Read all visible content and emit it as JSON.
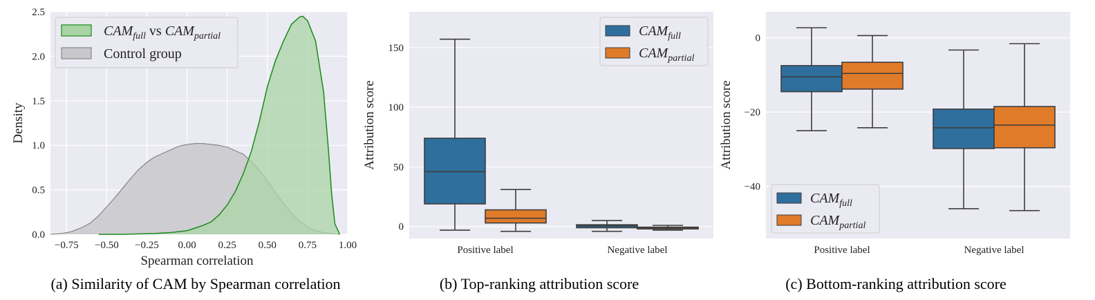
{
  "chart_data": [
    {
      "type": "area",
      "caption": "(a) Similarity of CAM by Spearman correlation",
      "xlabel": "Spearman correlation",
      "ylabel": "Density",
      "xlim": [
        -0.85,
        1.0
      ],
      "ylim": [
        0,
        2.5
      ],
      "x_ticks": [
        "−0.75",
        "−0.50",
        "−0.25",
        "0.00",
        "0.25",
        "0.50",
        "0.75",
        "1.00"
      ],
      "y_ticks": [
        "0.0",
        "0.5",
        "1.0",
        "1.5",
        "2.0",
        "2.5"
      ],
      "legend_position": "upper-left",
      "grid": true,
      "series": [
        {
          "name": "CAM_full vs CAM_partial",
          "legend_main_1": "CAM",
          "legend_sub_1": "full",
          "legend_mid": " vs ",
          "legend_main_2": "CAM",
          "legend_sub_2": "partial",
          "fill": "#a9d4a5",
          "stroke": "#1a8a1a",
          "x": [
            -0.55,
            -0.4,
            -0.2,
            -0.1,
            0.0,
            0.05,
            0.1,
            0.15,
            0.2,
            0.25,
            0.3,
            0.35,
            0.4,
            0.45,
            0.5,
            0.55,
            0.6,
            0.65,
            0.7,
            0.72,
            0.75,
            0.8,
            0.85,
            0.88,
            0.9,
            0.92,
            0.95
          ],
          "values": [
            0.0,
            0.0,
            0.01,
            0.02,
            0.04,
            0.07,
            0.1,
            0.14,
            0.22,
            0.33,
            0.48,
            0.68,
            0.93,
            1.27,
            1.66,
            1.95,
            2.17,
            2.36,
            2.44,
            2.45,
            2.4,
            2.17,
            1.6,
            0.95,
            0.45,
            0.12,
            0.0
          ]
        },
        {
          "name": "Control group",
          "fill": "#c9c8cd",
          "stroke": "#777777",
          "x": [
            -0.85,
            -0.78,
            -0.72,
            -0.65,
            -0.6,
            -0.55,
            -0.5,
            -0.45,
            -0.4,
            -0.35,
            -0.3,
            -0.25,
            -0.2,
            -0.15,
            -0.1,
            -0.05,
            0.0,
            0.05,
            0.1,
            0.15,
            0.2,
            0.25,
            0.3,
            0.35,
            0.4,
            0.45,
            0.5,
            0.55,
            0.6,
            0.65,
            0.7,
            0.75,
            0.8,
            0.85,
            0.9,
            0.95
          ],
          "values": [
            0.0,
            0.01,
            0.03,
            0.08,
            0.13,
            0.21,
            0.31,
            0.41,
            0.52,
            0.63,
            0.73,
            0.81,
            0.87,
            0.91,
            0.95,
            0.99,
            1.01,
            1.02,
            1.02,
            1.01,
            1.0,
            0.98,
            0.94,
            0.9,
            0.82,
            0.72,
            0.6,
            0.47,
            0.35,
            0.24,
            0.15,
            0.08,
            0.04,
            0.02,
            0.01,
            0.0
          ]
        }
      ]
    },
    {
      "type": "box",
      "caption": "(b) Top-ranking attribution score",
      "ylabel": "Attribution score",
      "categories": [
        "Positive label",
        "Negative label"
      ],
      "ylim": [
        -10,
        180
      ],
      "y_ticks": [
        0,
        50,
        100,
        150
      ],
      "legend_position": "upper-right",
      "series": [
        {
          "name": "CAM_full",
          "legend_main": "CAM",
          "legend_sub": "full",
          "color": "#2e6f9e",
          "boxes": [
            {
              "whisker_low": -3,
              "q1": 19,
              "median": 46,
              "q3": 74,
              "whisker_high": 157
            },
            {
              "whisker_low": -4,
              "q1": -1,
              "median": 0.5,
              "q3": 1.5,
              "whisker_high": 5
            }
          ]
        },
        {
          "name": "CAM_partial",
          "legend_main": "CAM",
          "legend_sub": "partial",
          "color": "#e07b2a",
          "boxes": [
            {
              "whisker_low": -4,
              "q1": 3,
              "median": 7,
              "q3": 14,
              "whisker_high": 31
            },
            {
              "whisker_low": -3,
              "q1": -2,
              "median": -1,
              "q3": -0.5,
              "whisker_high": 1
            }
          ]
        }
      ]
    },
    {
      "type": "box",
      "caption": "(c) Bottom-ranking attribution score",
      "ylabel": "Attribution score",
      "categories": [
        "Positive label",
        "Negative label"
      ],
      "ylim": [
        -54,
        7
      ],
      "y_ticks": [
        0,
        -20,
        -40
      ],
      "y_tick_labels": [
        "0",
        "−20",
        "−40"
      ],
      "legend_position": "lower-left",
      "series": [
        {
          "name": "CAM_full",
          "legend_main": "CAM",
          "legend_sub": "full",
          "color": "#2e6f9e",
          "boxes": [
            {
              "whisker_low": -25,
              "q1": -14.5,
              "median": -10.5,
              "q3": -7.5,
              "whisker_high": 2.7
            },
            {
              "whisker_low": -46,
              "q1": -29.8,
              "median": -24.2,
              "q3": -19.2,
              "whisker_high": -3.3
            }
          ]
        },
        {
          "name": "CAM_partial",
          "legend_main": "CAM",
          "legend_sub": "partial",
          "color": "#e07b2a",
          "boxes": [
            {
              "whisker_low": -24.2,
              "q1": -13.8,
              "median": -9.6,
              "q3": -6.6,
              "whisker_high": 0.6
            },
            {
              "whisker_low": -46.5,
              "q1": -29.6,
              "median": -23.5,
              "q3": -18.5,
              "whisker_high": -1.6
            }
          ]
        }
      ]
    }
  ]
}
